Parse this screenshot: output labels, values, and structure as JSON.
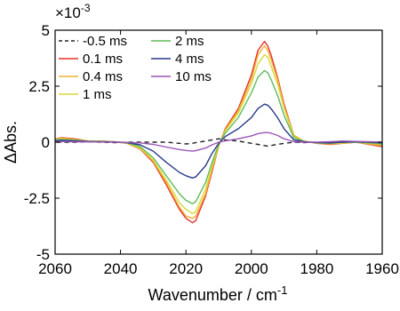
{
  "chart_data": {
    "type": "line",
    "xlabel": "Wavenumber / cm",
    "xlabel_superscript": "-1",
    "ylabel": "ΔAbs.",
    "y_multiplier": "×10",
    "y_multiplier_exponent": "-3",
    "xlim": [
      2060,
      1960
    ],
    "ylim": [
      -5,
      5
    ],
    "xticks": [
      2060,
      2040,
      2020,
      2000,
      1980,
      1960
    ],
    "yticks": [
      5,
      2.5,
      0,
      -2.5,
      -5
    ],
    "ytick_labels": [
      "5",
      "2.5",
      "0",
      "-2.5",
      "-5"
    ],
    "x": [
      2062,
      2058,
      2054,
      2050,
      2046,
      2042,
      2038,
      2034,
      2030,
      2026,
      2022,
      2020,
      2018,
      2017,
      2014,
      2012,
      2010,
      2008,
      2004,
      2000,
      1998,
      1996,
      1995,
      1994,
      1992,
      1990,
      1987,
      1984,
      1980,
      1976,
      1972,
      1968,
      1964,
      1960
    ],
    "series": [
      {
        "name": "-0.5 ms",
        "color": "#222222",
        "dashed": true,
        "values": [
          0,
          0,
          0,
          0.02,
          0,
          -0.02,
          0,
          0,
          0,
          0,
          -0.05,
          -0.08,
          -0.05,
          -0.02,
          0.05,
          0.1,
          0.15,
          0.1,
          0.05,
          -0.05,
          -0.1,
          -0.15,
          -0.18,
          -0.15,
          -0.1,
          -0.05,
          0,
          -0.02,
          0,
          0,
          -0.02,
          0,
          0,
          0
        ]
      },
      {
        "name": "0.1 ms",
        "color": "#e8302a",
        "values": [
          0.1,
          0.2,
          0.15,
          0.05,
          0.05,
          0.02,
          -0.05,
          -0.3,
          -0.9,
          -1.9,
          -3.0,
          -3.4,
          -3.6,
          -3.5,
          -2.4,
          -1.3,
          -0.2,
          0.6,
          1.5,
          3.0,
          4.1,
          4.5,
          4.3,
          3.9,
          2.9,
          1.7,
          0.3,
          0.05,
          -0.05,
          -0.1,
          -0.05,
          0,
          -0.1,
          -0.2
        ]
      },
      {
        "name": "0.4 ms",
        "color": "#f0b030",
        "values": [
          0.1,
          0.18,
          0.12,
          0.05,
          0.05,
          0.02,
          -0.05,
          -0.28,
          -0.85,
          -1.8,
          -2.9,
          -3.3,
          -3.4,
          -3.3,
          -2.3,
          -1.2,
          -0.2,
          0.55,
          1.4,
          2.8,
          3.9,
          4.3,
          4.1,
          3.7,
          2.8,
          1.6,
          0.3,
          0.05,
          -0.05,
          -0.08,
          -0.05,
          0,
          -0.08,
          -0.15
        ]
      },
      {
        "name": "1 ms",
        "color": "#d8d83a",
        "values": [
          0.08,
          0.15,
          0.1,
          0.05,
          0.04,
          0.02,
          -0.04,
          -0.25,
          -0.8,
          -1.7,
          -2.7,
          -3.0,
          -3.2,
          -3.1,
          -2.1,
          -1.1,
          -0.15,
          0.5,
          1.3,
          2.6,
          3.5,
          3.9,
          3.8,
          3.4,
          2.6,
          1.5,
          0.25,
          0.05,
          -0.04,
          -0.05,
          -0.02,
          0,
          -0.05,
          -0.1
        ]
      },
      {
        "name": "2 ms",
        "color": "#5fba5a",
        "values": [
          0.05,
          0.12,
          0.08,
          0.04,
          0.03,
          0.01,
          -0.03,
          -0.2,
          -0.7,
          -1.5,
          -2.3,
          -2.6,
          -2.75,
          -2.65,
          -1.8,
          -0.9,
          -0.1,
          0.4,
          1.1,
          2.2,
          2.9,
          3.2,
          3.1,
          2.8,
          2.1,
          1.2,
          0.2,
          0.03,
          -0.03,
          -0.05,
          0,
          0,
          -0.03,
          -0.08
        ]
      },
      {
        "name": "4 ms",
        "color": "#2a3a8a",
        "values": [
          0.05,
          0.08,
          0.06,
          0.03,
          0.02,
          0.01,
          -0.02,
          -0.12,
          -0.4,
          -0.9,
          -1.35,
          -1.5,
          -1.6,
          -1.55,
          -1.05,
          -0.5,
          -0.05,
          0.25,
          0.6,
          1.1,
          1.5,
          1.7,
          1.65,
          1.5,
          1.1,
          0.6,
          0.1,
          0.02,
          -0.02,
          -0.03,
          0,
          0.02,
          0,
          -0.03
        ]
      },
      {
        "name": "10 ms",
        "color": "#9a55b5",
        "values": [
          0.02,
          0.03,
          0.02,
          0.01,
          0.01,
          0,
          -0.01,
          -0.03,
          -0.1,
          -0.22,
          -0.33,
          -0.37,
          -0.4,
          -0.38,
          -0.26,
          -0.12,
          0,
          0.06,
          0.15,
          0.28,
          0.38,
          0.43,
          0.43,
          0.4,
          0.3,
          0.15,
          0.02,
          0,
          0,
          0.02,
          0.05,
          0.03,
          0.02,
          0
        ]
      }
    ],
    "legend": {
      "placement": "top-left",
      "columns": [
        [
          "-0.5 ms",
          "0.1 ms",
          "0.4 ms",
          "1 ms"
        ],
        [
          "2 ms",
          "4 ms",
          "10 ms"
        ]
      ]
    }
  }
}
